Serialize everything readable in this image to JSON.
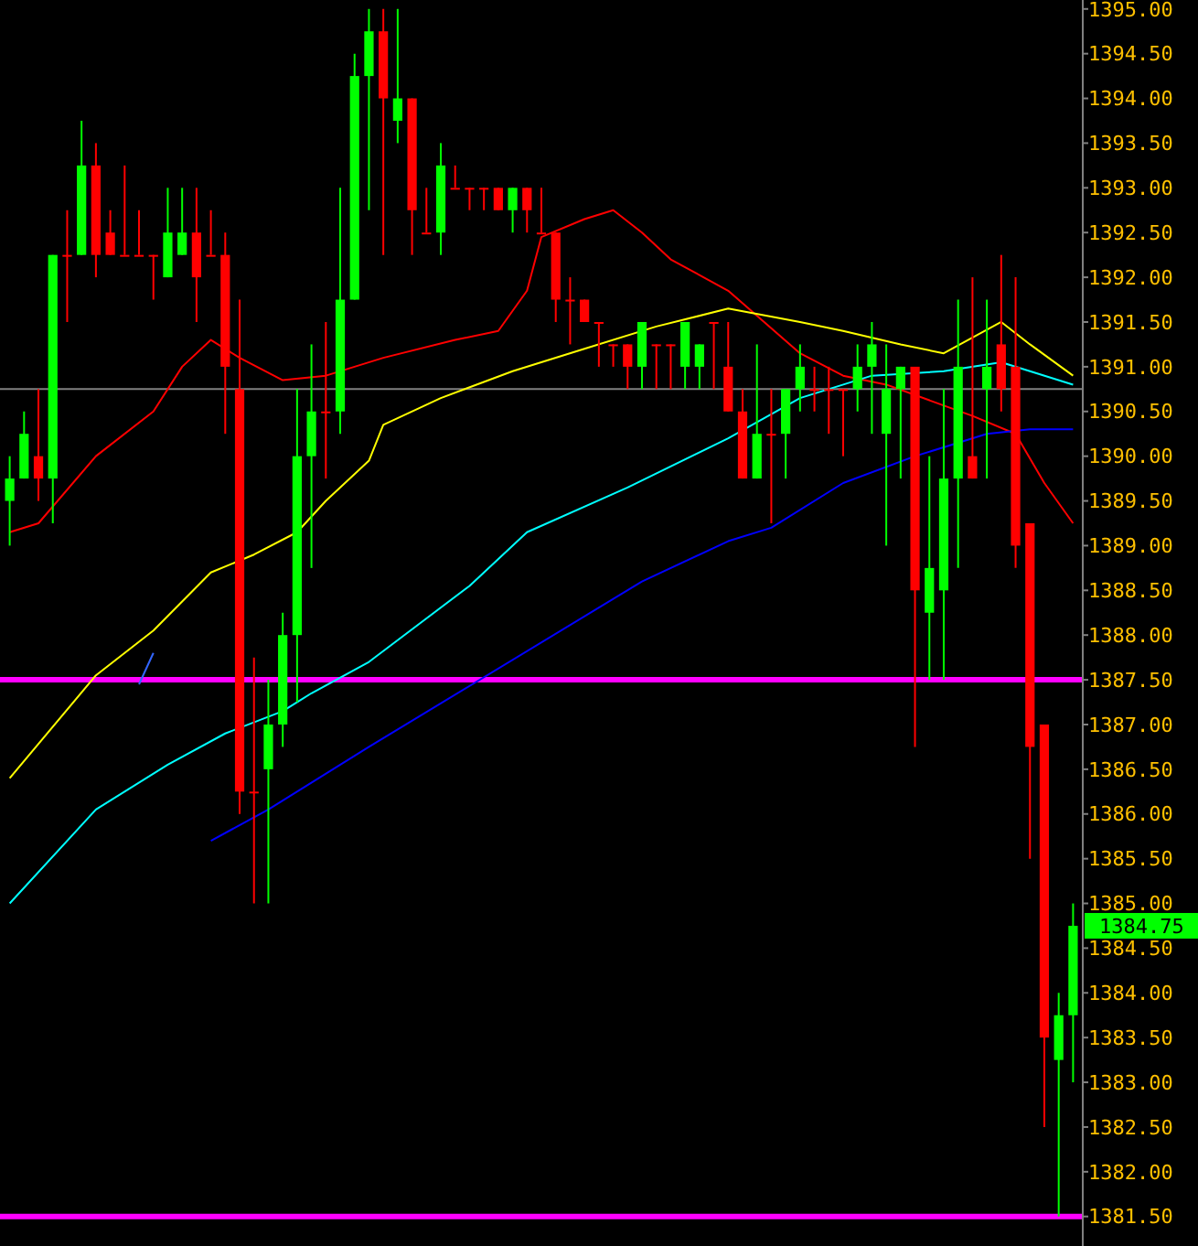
{
  "chart_data": [
    {
      "type": "candlestick",
      "grid": false,
      "categories": [
        null,
        null,
        null,
        null,
        null,
        null,
        null,
        null,
        null,
        null,
        null,
        null,
        null,
        null,
        null,
        null,
        null,
        null,
        null,
        null,
        null,
        null,
        null,
        null,
        null,
        null,
        null,
        null,
        null,
        null,
        null,
        null,
        null,
        null,
        null,
        null,
        null,
        null,
        null,
        null,
        null,
        null,
        null,
        null,
        null,
        null,
        null,
        null,
        null,
        null,
        null,
        null,
        null,
        null,
        null,
        null,
        null,
        null,
        null,
        null,
        null,
        null,
        null,
        null,
        null,
        null,
        null,
        null,
        null,
        null,
        null,
        null,
        null,
        null,
        null
      ],
      "ylim": [
        1381.17,
        1395.1
      ],
      "yticks": [
        {
          "value": 1381.5,
          "label": "1381.50"
        },
        {
          "value": 1382,
          "label": "1382.00"
        },
        {
          "value": 1382.5,
          "label": "1382.50"
        },
        {
          "value": 1383,
          "label": "1383.00"
        },
        {
          "value": 1383.5,
          "label": "1383.50"
        },
        {
          "value": 1384,
          "label": "1384.00"
        },
        {
          "value": 1384.5,
          "label": "1384.50"
        },
        {
          "value": 1385,
          "label": "1385.00"
        },
        {
          "value": 1385.5,
          "label": "1385.50"
        },
        {
          "value": 1386,
          "label": "1386.00"
        },
        {
          "value": 1386.5,
          "label": "1386.50"
        },
        {
          "value": 1387,
          "label": "1387.00"
        },
        {
          "value": 1387.5,
          "label": "1387.50"
        },
        {
          "value": 1388,
          "label": "1388.00"
        },
        {
          "value": 1388.5,
          "label": "1388.50"
        },
        {
          "value": 1389,
          "label": "1389.00"
        },
        {
          "value": 1389.5,
          "label": "1389.50"
        },
        {
          "value": 1390,
          "label": "1390.00"
        },
        {
          "value": 1390.5,
          "label": "1390.50"
        },
        {
          "value": 1391,
          "label": "1391.00"
        },
        {
          "value": 1391.5,
          "label": "1391.50"
        },
        {
          "value": 1392,
          "label": "1392.00"
        },
        {
          "value": 1392.5,
          "label": "1392.50"
        },
        {
          "value": 1393,
          "label": "1393.00"
        },
        {
          "value": 1393.5,
          "label": "1393.50"
        },
        {
          "value": 1394,
          "label": "1394.00"
        },
        {
          "value": 1394.5,
          "label": "1394.50"
        },
        {
          "value": 1395,
          "label": "1395.00"
        }
      ],
      "ohlc": [
        [
          1389.5,
          1390,
          1389,
          1389.75
        ],
        [
          1389.75,
          1390.5,
          1389.75,
          1390.25
        ],
        [
          1390,
          1390.75,
          1389.5,
          1389.75
        ],
        [
          1389.75,
          1392.25,
          1389.25,
          1392.25
        ],
        [
          1392.25,
          1392.75,
          1391.5,
          1392.25
        ],
        [
          1392.25,
          1393.75,
          1392.25,
          1393.25
        ],
        [
          1393.25,
          1393.5,
          1392,
          1392.25
        ],
        [
          1392.5,
          1392.75,
          1392.25,
          1392.25
        ],
        [
          1392.25,
          1393.25,
          1392.25,
          1392.25
        ],
        [
          1392.25,
          1392.75,
          1392.25,
          1392.25
        ],
        [
          1392.25,
          1392.25,
          1391.75,
          1392.25
        ],
        [
          1392,
          1393,
          1392,
          1392.5
        ],
        [
          1392.25,
          1393,
          1392.25,
          1392.5
        ],
        [
          1392.5,
          1393,
          1391.5,
          1392
        ],
        [
          1392.25,
          1392.75,
          1392.25,
          1392.25
        ],
        [
          1392.25,
          1392.5,
          1390.25,
          1391
        ],
        [
          1390.75,
          1391.75,
          1386,
          1386.25
        ],
        [
          1386.25,
          1387.75,
          1385,
          1386.25
        ],
        [
          1386.5,
          1387.5,
          1385,
          1387
        ],
        [
          1387,
          1388.25,
          1386.75,
          1388
        ],
        [
          1388,
          1390.75,
          1387.25,
          1390
        ],
        [
          1390,
          1391.25,
          1388.75,
          1390.5
        ],
        [
          1390.5,
          1391.5,
          1389.75,
          1390.5
        ],
        [
          1390.5,
          1393,
          1390.25,
          1391.75
        ],
        [
          1391.75,
          1394.5,
          1391.75,
          1394.25
        ],
        [
          1394.25,
          1395,
          1392.75,
          1394.75
        ],
        [
          1394.75,
          1395,
          1392.25,
          1394
        ],
        [
          1393.75,
          1395,
          1393.5,
          1394
        ],
        [
          1394,
          1394,
          1392.25,
          1392.75
        ],
        [
          1392.5,
          1393,
          1392.5,
          1392.5
        ],
        [
          1392.5,
          1393.5,
          1392.25,
          1393.25
        ],
        [
          1393,
          1393.25,
          1393,
          1393
        ],
        [
          1393,
          1393,
          1392.75,
          1393
        ],
        [
          1393,
          1393,
          1392.75,
          1393
        ],
        [
          1393,
          1393,
          1392.75,
          1392.75
        ],
        [
          1392.75,
          1393,
          1392.5,
          1393
        ],
        [
          1393,
          1393,
          1392.5,
          1392.75
        ],
        [
          1392.5,
          1393,
          1392.5,
          1392.5
        ],
        [
          1392.5,
          1392.5,
          1391.5,
          1391.75
        ],
        [
          1391.75,
          1392,
          1391.25,
          1391.75
        ],
        [
          1391.75,
          1391.75,
          1391.5,
          1391.5
        ],
        [
          1391.5,
          1391.5,
          1391,
          1391.5
        ],
        [
          1391.25,
          1391.25,
          1391,
          1391.25
        ],
        [
          1391.25,
          1391.25,
          1390.75,
          1391
        ],
        [
          1391,
          1391.5,
          1390.75,
          1391.5
        ],
        [
          1391.25,
          1391.25,
          1390.75,
          1391.25
        ],
        [
          1391.25,
          1391.25,
          1390.75,
          1391.25
        ],
        [
          1391,
          1391.5,
          1390.75,
          1391.5
        ],
        [
          1391,
          1391.25,
          1390.75,
          1391.25
        ],
        [
          1391.5,
          1391.5,
          1390.75,
          1391.5
        ],
        [
          1391,
          1391.5,
          1390.5,
          1390.5
        ],
        [
          1390.5,
          1390.75,
          1389.75,
          1389.75
        ],
        [
          1389.75,
          1391.25,
          1389.75,
          1390.25
        ],
        [
          1390.25,
          1390.75,
          1389.25,
          1390.25
        ],
        [
          1390.25,
          1390.75,
          1389.75,
          1390.75
        ],
        [
          1390.75,
          1391.25,
          1390.5,
          1391
        ],
        [
          1390.75,
          1391,
          1390.5,
          1390.75
        ],
        [
          1390.75,
          1391,
          1390.25,
          1390.75
        ],
        [
          1390.75,
          1390.75,
          1390,
          1390.75
        ],
        [
          1390.75,
          1391.25,
          1390.5,
          1391
        ],
        [
          1391,
          1391.5,
          1390.25,
          1391.25
        ],
        [
          1390.25,
          1391.25,
          1389,
          1390.75
        ],
        [
          1390.75,
          1391,
          1389.75,
          1391
        ],
        [
          1391,
          1391,
          1386.75,
          1388.5
        ],
        [
          1388.25,
          1390,
          1387.5,
          1388.75
        ],
        [
          1388.5,
          1390.75,
          1387.5,
          1389.75
        ],
        [
          1389.75,
          1391.75,
          1388.75,
          1391
        ],
        [
          1390,
          1392,
          1389.75,
          1389.75
        ],
        [
          1390.75,
          1391.75,
          1389.75,
          1391
        ],
        [
          1391.25,
          1392.25,
          1390.5,
          1390.75
        ],
        [
          1391,
          1392,
          1388.75,
          1389
        ],
        [
          1389.25,
          1389.25,
          1385.5,
          1386.75
        ],
        [
          1387,
          1387,
          1382.5,
          1383.5
        ],
        [
          1383.25,
          1384,
          1381.5,
          1383.75
        ],
        [
          1383.75,
          1385,
          1383,
          1384.75
        ]
      ],
      "colors": [
        "#00ff00",
        "#00ff00",
        "#ff0000",
        "#00ff00",
        "#ff0000",
        "#00ff00",
        "#ff0000",
        "#ff0000",
        "#ff0000",
        "#ff0000",
        "#ff0000",
        "#00ff00",
        "#00ff00",
        "#ff0000",
        "#ff0000",
        "#ff0000",
        "#ff0000",
        "#ff0000",
        "#00ff00",
        "#00ff00",
        "#00ff00",
        "#00ff00",
        "#ff0000",
        "#00ff00",
        "#00ff00",
        "#00ff00",
        "#ff0000",
        "#00ff00",
        "#ff0000",
        "#ff0000",
        "#00ff00",
        "#ff0000",
        "#ff0000",
        "#ff0000",
        "#ff0000",
        "#00ff00",
        "#ff0000",
        "#ff0000",
        "#ff0000",
        "#ff0000",
        "#ff0000",
        "#ff0000",
        "#ff0000",
        "#ff0000",
        "#00ff00",
        "#ff0000",
        "#ff0000",
        "#00ff00",
        "#00ff00",
        "#ff0000",
        "#ff0000",
        "#ff0000",
        "#00ff00",
        "#ff0000",
        "#00ff00",
        "#00ff00",
        "#ff0000",
        "#ff0000",
        "#ff0000",
        "#00ff00",
        "#00ff00",
        "#00ff00",
        "#00ff00",
        "#ff0000",
        "#00ff00",
        "#00ff00",
        "#00ff00",
        "#ff0000",
        "#00ff00",
        "#ff0000",
        "#ff0000",
        "#ff0000",
        "#ff0000",
        "#00ff00",
        "#00ff00"
      ],
      "annotations": [
        "1384.75"
      ]
    },
    {
      "type": "line",
      "tick_labels": false,
      "ref_lines": [
        {
          "axis": "y",
          "value": 1387.5,
          "color": "#ff00ff"
        },
        {
          "axis": "y",
          "value": 1381.5,
          "color": "#ff00ff"
        },
        {
          "axis": "y",
          "value": 1390.75,
          "color": "#808080"
        }
      ],
      "categories": [
        null,
        null,
        null,
        null,
        null,
        null,
        null,
        null,
        null,
        null,
        null,
        null,
        null,
        null,
        null,
        null,
        null,
        null,
        null,
        null,
        null,
        null,
        null,
        null,
        null,
        null,
        null,
        null,
        null,
        null,
        null,
        null,
        null,
        null,
        null,
        null,
        null,
        null,
        null,
        null,
        null,
        null,
        null,
        null,
        null,
        null,
        null,
        null,
        null,
        null,
        null,
        null,
        null,
        null,
        null,
        null,
        null,
        null,
        null,
        null,
        null,
        null,
        null,
        null,
        null,
        null,
        null,
        null,
        null,
        null,
        null,
        null,
        null,
        null,
        null
      ],
      "ylim": [
        1381.17,
        1395.1
      ],
      "series": [
        {
          "color": "#ff0000",
          "values": [
            1389.15,
            null,
            1389.25,
            null,
            null,
            null,
            1390,
            null,
            null,
            null,
            1390.5,
            null,
            1391,
            null,
            1391.3,
            null,
            1391.1,
            null,
            null,
            1390.85,
            null,
            null,
            1390.9,
            null,
            null,
            null,
            1391.1,
            null,
            null,
            null,
            null,
            1391.3,
            null,
            null,
            1391.4,
            null,
            1391.85,
            1392.45,
            null,
            null,
            1392.65,
            null,
            1392.75,
            null,
            1392.5,
            null,
            1392.2,
            null,
            null,
            null,
            1391.85,
            null,
            null,
            null,
            null,
            1391.15,
            null,
            null,
            1390.9,
            null,
            null,
            1390.8,
            null,
            null,
            null,
            null,
            null,
            1390.45,
            null,
            null,
            1390.25,
            null,
            1389.7,
            null,
            1389.25
          ]
        },
        {
          "color": "#ffff00",
          "values": [
            1386.4,
            null,
            null,
            null,
            null,
            null,
            1387.55,
            null,
            null,
            null,
            1388.05,
            null,
            null,
            null,
            1388.7,
            null,
            null,
            1388.9,
            null,
            null,
            1389.15,
            null,
            1389.5,
            null,
            null,
            1389.95,
            1390.35,
            null,
            null,
            null,
            1390.65,
            null,
            null,
            null,
            null,
            1390.95,
            null,
            null,
            null,
            null,
            1391.2,
            null,
            null,
            null,
            null,
            1391.45,
            null,
            null,
            null,
            null,
            1391.65,
            null,
            null,
            null,
            null,
            1391.5,
            null,
            null,
            1391.4,
            null,
            null,
            null,
            1391.25,
            null,
            null,
            1391.15,
            null,
            null,
            null,
            1391.5,
            null,
            1391.25,
            null,
            null,
            1390.9
          ]
        },
        {
          "color": "#00ffff",
          "values": [
            1385,
            null,
            null,
            null,
            null,
            null,
            1386.05,
            null,
            null,
            null,
            null,
            1386.55,
            null,
            null,
            null,
            1386.9,
            null,
            null,
            null,
            1387.15,
            null,
            1387.35,
            null,
            null,
            null,
            1387.7,
            null,
            null,
            null,
            null,
            null,
            null,
            1388.55,
            null,
            null,
            null,
            1389.15,
            null,
            null,
            null,
            null,
            null,
            null,
            1389.65,
            null,
            null,
            null,
            null,
            null,
            null,
            1390.2,
            null,
            null,
            null,
            null,
            1390.65,
            null,
            null,
            null,
            null,
            1390.9,
            null,
            null,
            null,
            null,
            1390.95,
            null,
            null,
            null,
            1391.05,
            null,
            1390.95,
            null,
            null,
            1390.8
          ]
        },
        {
          "color": "#0000ff",
          "values": [
            null,
            null,
            null,
            null,
            null,
            null,
            null,
            null,
            null,
            null,
            null,
            null,
            null,
            null,
            1385.7,
            null,
            null,
            null,
            1386.05,
            null,
            null,
            null,
            null,
            null,
            null,
            1386.75,
            null,
            null,
            null,
            null,
            null,
            null,
            null,
            null,
            null,
            null,
            null,
            null,
            null,
            null,
            null,
            null,
            null,
            null,
            1388.6,
            null,
            null,
            null,
            null,
            null,
            1389.05,
            null,
            null,
            1389.2,
            null,
            null,
            null,
            null,
            1389.7,
            null,
            null,
            null,
            null,
            1390,
            null,
            null,
            null,
            null,
            1390.25,
            null,
            null,
            1390.3,
            null,
            null,
            1390.3
          ]
        },
        {
          "color": "#3366ff",
          "values": [
            null,
            null,
            null,
            null,
            null,
            null,
            null,
            null,
            null,
            1387.45,
            1387.8,
            null,
            null,
            null,
            null,
            null,
            null,
            null,
            null,
            null,
            null,
            null,
            null,
            null,
            null,
            null,
            null,
            null,
            null,
            null,
            null,
            null,
            null,
            null,
            null,
            null,
            null,
            null,
            null,
            null,
            null,
            null,
            null,
            null,
            null,
            null,
            null,
            null,
            null,
            null,
            null,
            null,
            null,
            null,
            null,
            null,
            null,
            null,
            null,
            null,
            null,
            null,
            null,
            null,
            null,
            null,
            null,
            null,
            null,
            null,
            null,
            null,
            null,
            null,
            null
          ]
        }
      ]
    }
  ]
}
